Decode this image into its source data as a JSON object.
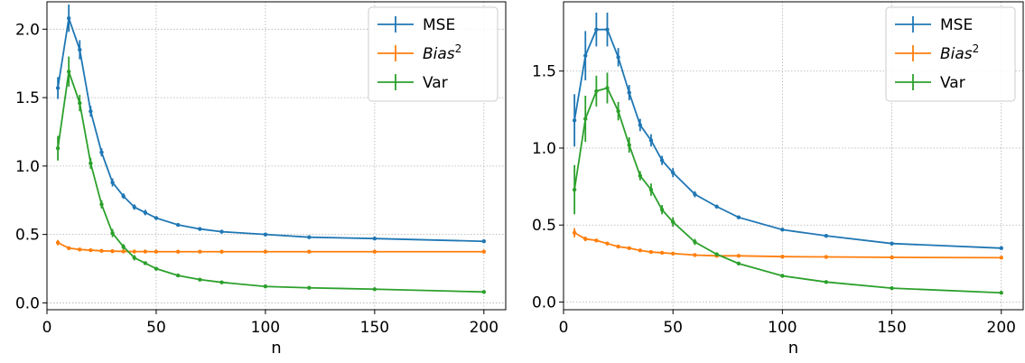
{
  "chart_data": [
    {
      "type": "line",
      "title": "",
      "xlabel": "n",
      "ylabel": "",
      "xlim": [
        0,
        210
      ],
      "ylim": [
        -0.05,
        2.2
      ],
      "xticks": [
        0,
        50,
        100,
        150,
        200
      ],
      "yticks": [
        0.0,
        0.5,
        1.0,
        1.5,
        2.0
      ],
      "grid": true,
      "legend_position": "top-right",
      "x": [
        5,
        10,
        15,
        20,
        25,
        30,
        35,
        40,
        45,
        50,
        60,
        70,
        80,
        100,
        120,
        150,
        200
      ],
      "series": [
        {
          "name": "MSE",
          "color": "#1f77b4",
          "values": [
            1.57,
            2.08,
            1.85,
            1.4,
            1.1,
            0.88,
            0.78,
            0.7,
            0.66,
            0.62,
            0.57,
            0.54,
            0.52,
            0.5,
            0.48,
            0.47,
            0.45
          ],
          "errors": [
            0.08,
            0.1,
            0.07,
            0.04,
            0.03,
            0.03,
            0.02,
            0.02,
            0.02,
            0.01,
            0.01,
            0.01,
            0.01,
            0.01,
            0.01,
            0.01,
            0.01
          ]
        },
        {
          "name": "Bias²",
          "color": "#ff7f0e",
          "values": [
            0.44,
            0.4,
            0.39,
            0.385,
            0.38,
            0.378,
            0.376,
            0.375,
            0.375,
            0.374,
            0.374,
            0.374,
            0.374,
            0.374,
            0.374,
            0.374,
            0.374
          ],
          "errors": [
            0.02,
            0.01,
            0.01,
            0.01,
            0.005,
            0.005,
            0.005,
            0.005,
            0.005,
            0.005,
            0.005,
            0.005,
            0.005,
            0.005,
            0.005,
            0.005,
            0.005
          ]
        },
        {
          "name": "Var",
          "color": "#2ca02c",
          "values": [
            1.13,
            1.69,
            1.46,
            1.02,
            0.72,
            0.51,
            0.41,
            0.33,
            0.29,
            0.25,
            0.2,
            0.17,
            0.15,
            0.12,
            0.11,
            0.1,
            0.08
          ],
          "errors": [
            0.09,
            0.11,
            0.06,
            0.04,
            0.03,
            0.03,
            0.02,
            0.02,
            0.01,
            0.01,
            0.01,
            0.01,
            0.01,
            0.01,
            0.01,
            0.01,
            0.01
          ]
        }
      ]
    },
    {
      "type": "line",
      "title": "",
      "xlabel": "n",
      "ylabel": "",
      "xlim": [
        0,
        210
      ],
      "ylim": [
        -0.05,
        1.95
      ],
      "xticks": [
        0,
        50,
        100,
        150,
        200
      ],
      "yticks": [
        0.0,
        0.5,
        1.0,
        1.5
      ],
      "grid": true,
      "legend_position": "top-right",
      "x": [
        5,
        10,
        15,
        20,
        25,
        30,
        35,
        40,
        45,
        50,
        60,
        70,
        80,
        100,
        120,
        150,
        200
      ],
      "series": [
        {
          "name": "MSE",
          "color": "#1f77b4",
          "values": [
            1.18,
            1.6,
            1.77,
            1.77,
            1.59,
            1.36,
            1.15,
            1.05,
            0.92,
            0.84,
            0.7,
            0.62,
            0.55,
            0.47,
            0.43,
            0.38,
            0.35
          ],
          "errors": [
            0.17,
            0.16,
            0.11,
            0.11,
            0.06,
            0.05,
            0.04,
            0.04,
            0.03,
            0.03,
            0.02,
            0.01,
            0.01,
            0.01,
            0.01,
            0.01,
            0.01
          ]
        },
        {
          "name": "Bias²",
          "color": "#ff7f0e",
          "values": [
            0.45,
            0.41,
            0.4,
            0.38,
            0.36,
            0.35,
            0.335,
            0.325,
            0.32,
            0.315,
            0.305,
            0.3,
            0.3,
            0.295,
            0.293,
            0.29,
            0.288
          ],
          "errors": [
            0.03,
            0.015,
            0.01,
            0.01,
            0.01,
            0.005,
            0.005,
            0.005,
            0.005,
            0.005,
            0.005,
            0.005,
            0.005,
            0.005,
            0.005,
            0.005,
            0.005
          ]
        },
        {
          "name": "Var",
          "color": "#2ca02c",
          "values": [
            0.73,
            1.19,
            1.37,
            1.39,
            1.24,
            1.02,
            0.82,
            0.73,
            0.6,
            0.52,
            0.39,
            0.31,
            0.25,
            0.17,
            0.13,
            0.09,
            0.06
          ],
          "errors": [
            0.16,
            0.15,
            0.1,
            0.1,
            0.06,
            0.05,
            0.03,
            0.04,
            0.03,
            0.03,
            0.02,
            0.01,
            0.01,
            0.01,
            0.01,
            0.01,
            0.01
          ]
        }
      ]
    }
  ]
}
